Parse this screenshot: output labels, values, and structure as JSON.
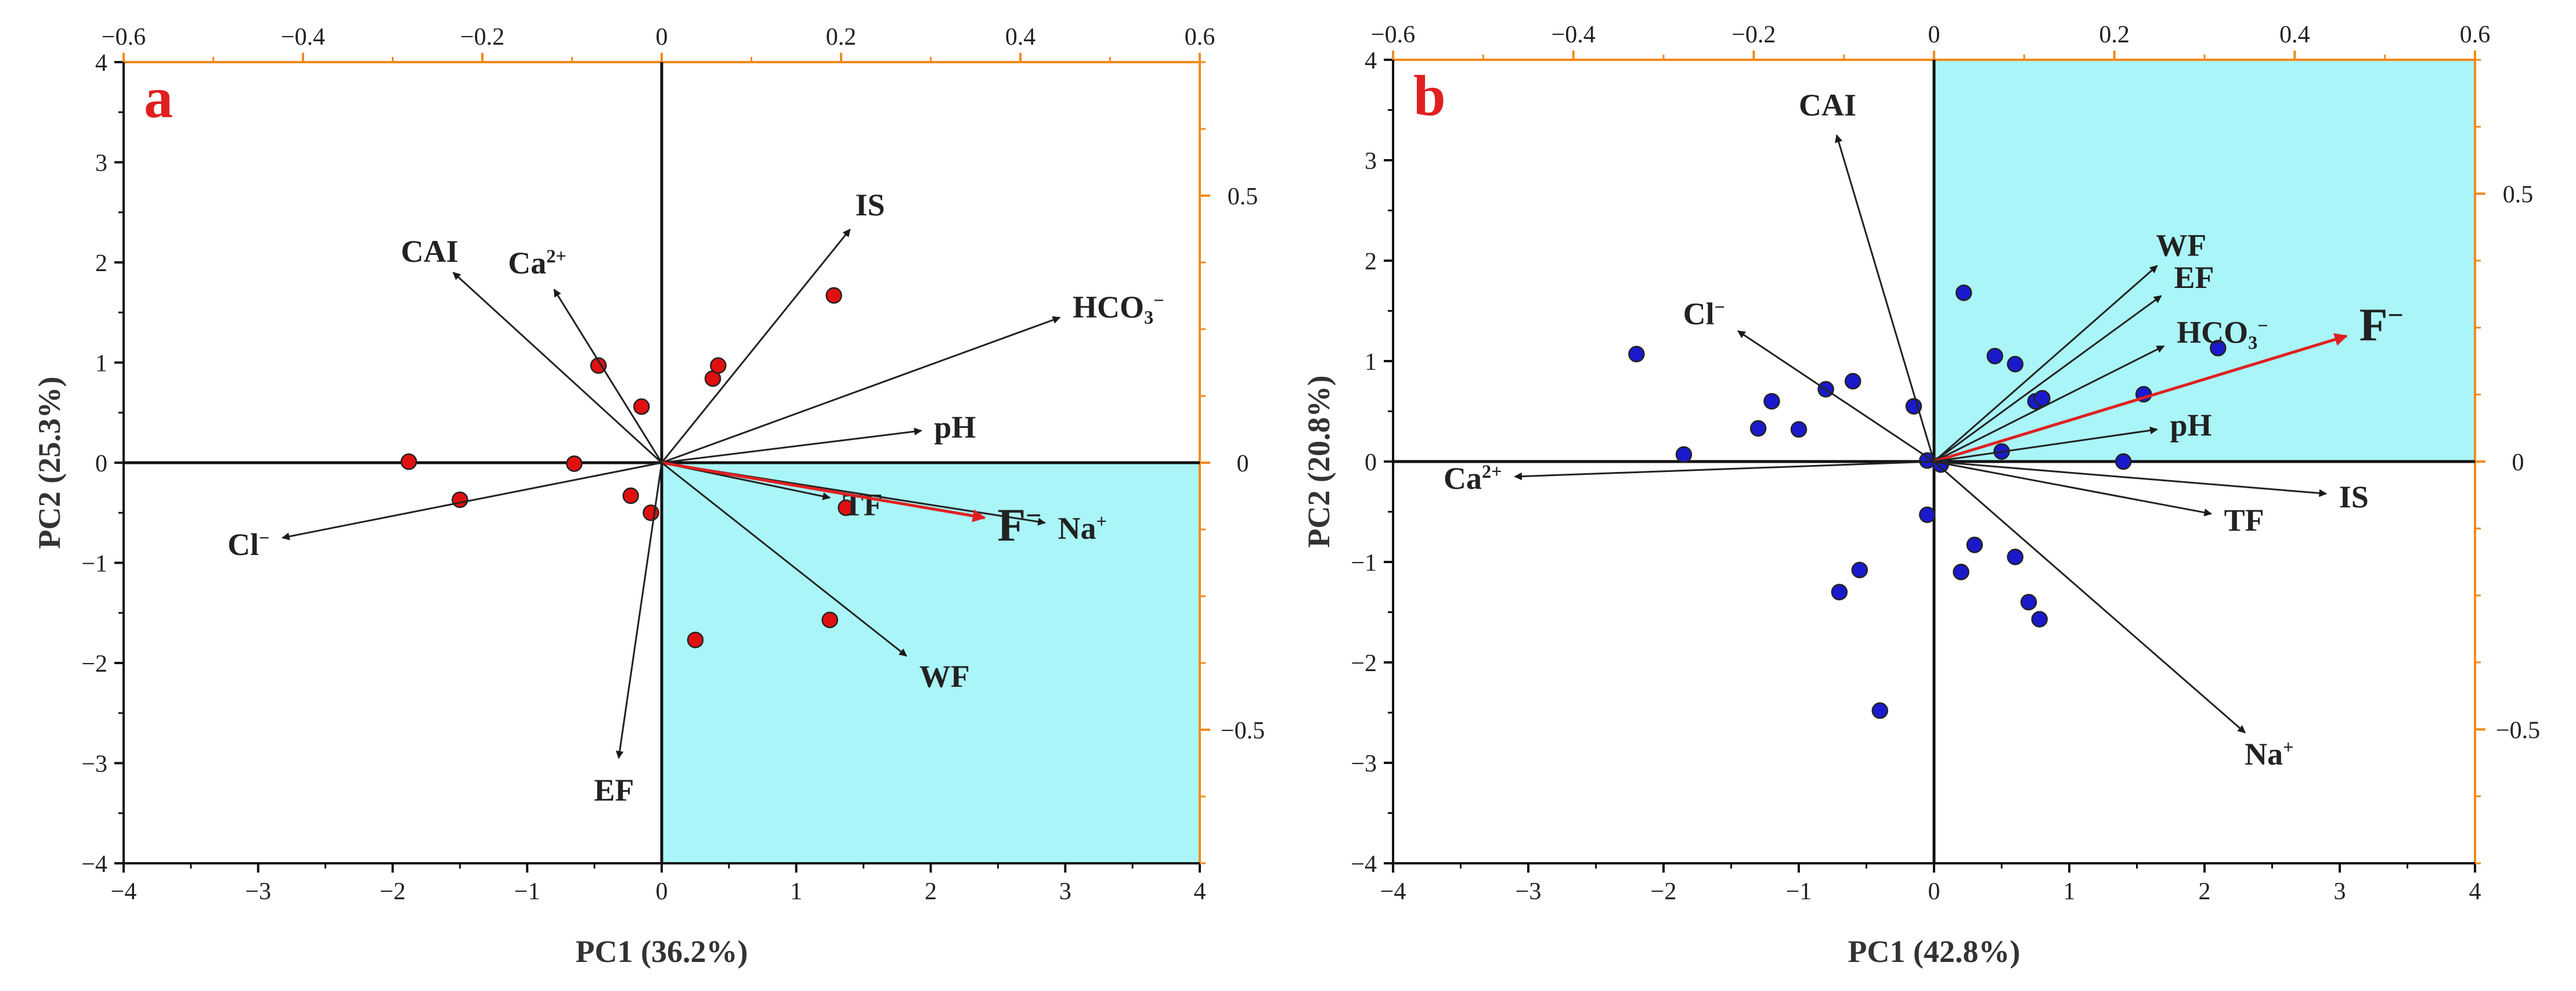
{
  "chart_data": [
    {
      "type": "scatter",
      "subtype": "biplot",
      "panel_letter": "a",
      "xlabel": "PC1 (36.2%)",
      "ylabel": "PC2 (25.3%)",
      "xlim": [
        -4,
        4
      ],
      "ylim": [
        -4,
        4
      ],
      "top_xlim": [
        -0.6,
        0.6
      ],
      "right_ylim": [
        -0.75,
        0.75
      ],
      "x_ticks": [
        "-4",
        "-3",
        "-2",
        "-1",
        "0",
        "1",
        "2",
        "3",
        "4"
      ],
      "y_ticks": [
        "4",
        "3",
        "2",
        "1",
        "0",
        "-1",
        "-2",
        "-3",
        "-4"
      ],
      "top_ticks": [
        "-0.6",
        "-0.4",
        "-0.2",
        "0",
        "0.2",
        "0.4",
        "0.6"
      ],
      "right_ticks": [
        "0.5",
        "0",
        "-0.5"
      ],
      "highlight_quadrant": "bottom-right",
      "point_color": "#e01010",
      "points": [
        {
          "x": -1.88,
          "y": 0.01
        },
        {
          "x": -1.5,
          "y": -0.37
        },
        {
          "x": -0.65,
          "y": -0.01
        },
        {
          "x": -0.47,
          "y": 0.97
        },
        {
          "x": -0.15,
          "y": 0.56
        },
        {
          "x": -0.23,
          "y": -0.33
        },
        {
          "x": -0.08,
          "y": -0.5
        },
        {
          "x": 0.38,
          "y": 0.84
        },
        {
          "x": 0.42,
          "y": 0.97
        },
        {
          "x": 1.28,
          "y": 1.67
        },
        {
          "x": 1.37,
          "y": -0.45
        },
        {
          "x": 1.25,
          "y": -1.57
        },
        {
          "x": 0.25,
          "y": -1.77
        }
      ],
      "vectors": [
        {
          "name": "CAI",
          "main": "CAI",
          "sup": "",
          "x": -1.55,
          "y": 1.9,
          "color": "#222222",
          "highlight": false
        },
        {
          "name": "Ca2+",
          "main": "Ca",
          "sup": "2+",
          "x": -0.8,
          "y": 1.73,
          "color": "#222222",
          "highlight": false
        },
        {
          "name": "IS",
          "main": "IS",
          "sup": "",
          "x": 1.4,
          "y": 2.33,
          "color": "#222222",
          "highlight": false
        },
        {
          "name": "HCO3-",
          "main": "HCO",
          "sub": "3",
          "sup": "−",
          "x": 2.96,
          "y": 1.45,
          "color": "#222222",
          "highlight": false
        },
        {
          "name": "pH",
          "main": "pH",
          "sup": "",
          "x": 1.93,
          "y": 0.32,
          "color": "#222222",
          "highlight": false
        },
        {
          "name": "Cl-",
          "main": "Cl",
          "sup": "−",
          "x": -2.82,
          "y": -0.75,
          "color": "#222222",
          "highlight": false
        },
        {
          "name": "TF",
          "main": "TF",
          "sup": "",
          "x": 1.25,
          "y": -0.35,
          "color": "#222222",
          "highlight": false
        },
        {
          "name": "Na+",
          "main": "Na",
          "sup": "+",
          "x": 2.85,
          "y": -0.6,
          "color": "#222222",
          "highlight": false
        },
        {
          "name": "F-",
          "main": "F",
          "sup": "−",
          "x": 2.4,
          "y": -0.55,
          "color": "#e02020",
          "highlight": true
        },
        {
          "name": "WF",
          "main": "WF",
          "sup": "",
          "x": 1.82,
          "y": -1.93,
          "color": "#222222",
          "highlight": false
        },
        {
          "name": "EF",
          "main": "EF",
          "sup": "",
          "x": -0.32,
          "y": -2.95,
          "color": "#222222",
          "highlight": false
        }
      ]
    },
    {
      "type": "scatter",
      "subtype": "biplot",
      "panel_letter": "b",
      "xlabel": "PC1 (42.8%)",
      "ylabel": "PC2 (20.8%)",
      "xlim": [
        -4,
        4
      ],
      "ylim": [
        -4,
        4
      ],
      "top_xlim": [
        -0.6,
        0.6
      ],
      "right_ylim": [
        -0.75,
        0.75
      ],
      "x_ticks": [
        "-4",
        "-3",
        "-2",
        "-1",
        "0",
        "1",
        "2",
        "3",
        "4"
      ],
      "y_ticks": [
        "4",
        "3",
        "2",
        "1",
        "0",
        "-1",
        "-2",
        "-3",
        "-4"
      ],
      "top_ticks": [
        "-0.6",
        "-0.4",
        "-0.2",
        "0",
        "0.2",
        "0.4",
        "0.6"
      ],
      "right_ticks": [
        "0.5",
        "0",
        "-0.5"
      ],
      "highlight_quadrant": "top-right",
      "point_color": "#1a1acc",
      "points": [
        {
          "x": -2.2,
          "y": 1.07
        },
        {
          "x": -1.85,
          "y": 0.07
        },
        {
          "x": -1.3,
          "y": 0.33
        },
        {
          "x": -1.2,
          "y": 0.6
        },
        {
          "x": -1.0,
          "y": 0.32
        },
        {
          "x": -0.8,
          "y": 0.72
        },
        {
          "x": -0.6,
          "y": 0.8
        },
        {
          "x": -0.15,
          "y": 0.55
        },
        {
          "x": -0.05,
          "y": 0.01
        },
        {
          "x": -0.05,
          "y": -0.53
        },
        {
          "x": 0.05,
          "y": -0.03
        },
        {
          "x": 0.22,
          "y": 1.68
        },
        {
          "x": 0.45,
          "y": 1.05
        },
        {
          "x": 0.6,
          "y": 0.97
        },
        {
          "x": 0.5,
          "y": 0.1
        },
        {
          "x": 0.3,
          "y": -0.83
        },
        {
          "x": 0.2,
          "y": -1.1
        },
        {
          "x": 0.6,
          "y": -0.95
        },
        {
          "x": 0.7,
          "y": -1.4
        },
        {
          "x": 0.78,
          "y": -1.57
        },
        {
          "x": 0.75,
          "y": 0.6
        },
        {
          "x": 0.8,
          "y": 0.63
        },
        {
          "x": 1.4,
          "y": 0.0
        },
        {
          "x": 1.55,
          "y": 0.67
        },
        {
          "x": 2.1,
          "y": 1.13
        },
        {
          "x": -0.55,
          "y": -1.08
        },
        {
          "x": -0.7,
          "y": -1.3
        },
        {
          "x": -0.4,
          "y": -2.48
        }
      ],
      "vectors": [
        {
          "name": "CAI",
          "main": "CAI",
          "sup": "",
          "x": -0.72,
          "y": 3.25,
          "color": "#222222",
          "highlight": false
        },
        {
          "name": "Cl-",
          "main": "Cl",
          "sup": "−",
          "x": -1.45,
          "y": 1.3,
          "color": "#222222",
          "highlight": false
        },
        {
          "name": "Ca2+",
          "main": "Ca",
          "sup": "2+",
          "x": -3.1,
          "y": -0.15,
          "color": "#222222",
          "highlight": false
        },
        {
          "name": "WF",
          "main": "WF",
          "sup": "",
          "x": 1.65,
          "y": 1.95,
          "color": "#222222",
          "highlight": false
        },
        {
          "name": "EF",
          "main": "EF",
          "sup": "",
          "x": 1.68,
          "y": 1.65,
          "color": "#222222",
          "highlight": false
        },
        {
          "name": "HCO3-",
          "main": "HCO",
          "sub": "3",
          "sup": "−",
          "x": 1.7,
          "y": 1.15,
          "color": "#222222",
          "highlight": false
        },
        {
          "name": "F-",
          "main": "F",
          "sup": "−",
          "x": 3.05,
          "y": 1.25,
          "color": "#e02020",
          "highlight": true
        },
        {
          "name": "pH",
          "main": "pH",
          "sup": "",
          "x": 1.65,
          "y": 0.32,
          "color": "#222222",
          "highlight": false
        },
        {
          "name": "IS",
          "main": "IS",
          "sup": "",
          "x": 2.9,
          "y": -0.32,
          "color": "#222222",
          "highlight": false
        },
        {
          "name": "TF",
          "main": "TF",
          "sup": "",
          "x": 2.05,
          "y": -0.52,
          "color": "#222222",
          "highlight": false
        },
        {
          "name": "Na+",
          "main": "Na",
          "sup": "+",
          "x": 2.3,
          "y": -2.7,
          "color": "#222222",
          "highlight": false
        }
      ]
    }
  ],
  "colors": {
    "highlight_fill": "#aaf5f7",
    "secondary_axis": "#f08a1c",
    "panel_letter": "#e02020",
    "axis": "#111111"
  }
}
